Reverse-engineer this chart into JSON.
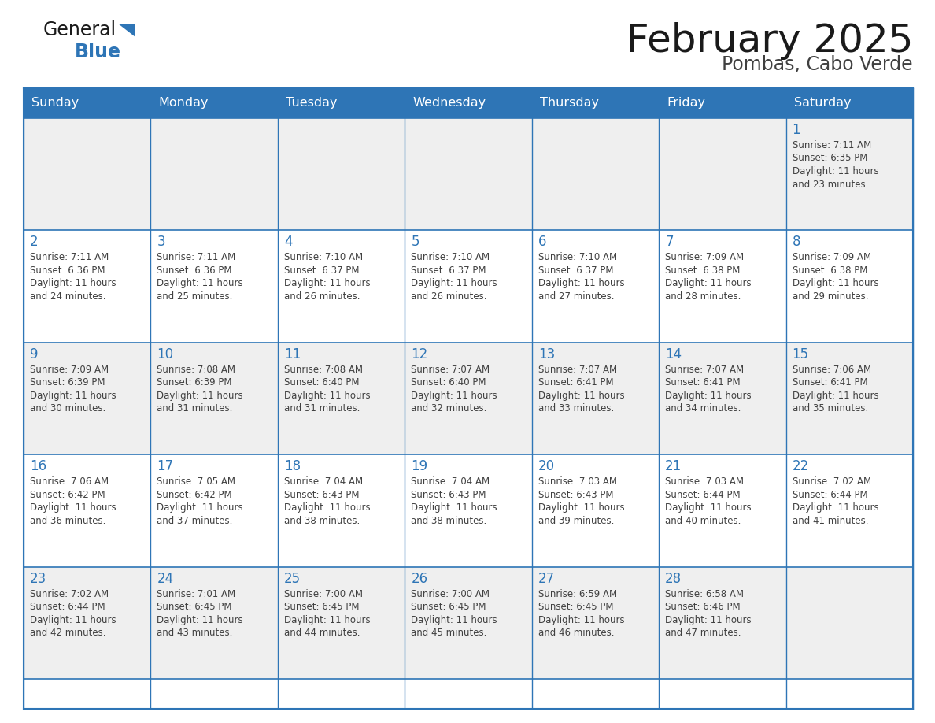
{
  "title": "February 2025",
  "subtitle": "Pombas, Cabo Verde",
  "days_of_week": [
    "Sunday",
    "Monday",
    "Tuesday",
    "Wednesday",
    "Thursday",
    "Friday",
    "Saturday"
  ],
  "header_bg": "#2E75B6",
  "header_text": "#FFFFFF",
  "cell_bg_white": "#FFFFFF",
  "cell_bg_gray": "#EFEFEF",
  "border_color": "#2E75B6",
  "day_num_color": "#2E75B6",
  "info_text_color": "#404040",
  "title_color": "#1a1a1a",
  "subtitle_color": "#404040",
  "logo_general_color": "#1a1a1a",
  "logo_blue_color": "#2E75B6",
  "weeks": [
    [
      null,
      null,
      null,
      null,
      null,
      null,
      1
    ],
    [
      2,
      3,
      4,
      5,
      6,
      7,
      8
    ],
    [
      9,
      10,
      11,
      12,
      13,
      14,
      15
    ],
    [
      16,
      17,
      18,
      19,
      20,
      21,
      22
    ],
    [
      23,
      24,
      25,
      26,
      27,
      28,
      null
    ]
  ],
  "cell_data": {
    "1": {
      "sunrise": "7:11 AM",
      "sunset": "6:35 PM",
      "daylight_h": "11 hours",
      "daylight_m": "23 minutes"
    },
    "2": {
      "sunrise": "7:11 AM",
      "sunset": "6:36 PM",
      "daylight_h": "11 hours",
      "daylight_m": "24 minutes"
    },
    "3": {
      "sunrise": "7:11 AM",
      "sunset": "6:36 PM",
      "daylight_h": "11 hours",
      "daylight_m": "25 minutes"
    },
    "4": {
      "sunrise": "7:10 AM",
      "sunset": "6:37 PM",
      "daylight_h": "11 hours",
      "daylight_m": "26 minutes"
    },
    "5": {
      "sunrise": "7:10 AM",
      "sunset": "6:37 PM",
      "daylight_h": "11 hours",
      "daylight_m": "26 minutes"
    },
    "6": {
      "sunrise": "7:10 AM",
      "sunset": "6:37 PM",
      "daylight_h": "11 hours",
      "daylight_m": "27 minutes"
    },
    "7": {
      "sunrise": "7:09 AM",
      "sunset": "6:38 PM",
      "daylight_h": "11 hours",
      "daylight_m": "28 minutes"
    },
    "8": {
      "sunrise": "7:09 AM",
      "sunset": "6:38 PM",
      "daylight_h": "11 hours",
      "daylight_m": "29 minutes"
    },
    "9": {
      "sunrise": "7:09 AM",
      "sunset": "6:39 PM",
      "daylight_h": "11 hours",
      "daylight_m": "30 minutes"
    },
    "10": {
      "sunrise": "7:08 AM",
      "sunset": "6:39 PM",
      "daylight_h": "11 hours",
      "daylight_m": "31 minutes"
    },
    "11": {
      "sunrise": "7:08 AM",
      "sunset": "6:40 PM",
      "daylight_h": "11 hours",
      "daylight_m": "31 minutes"
    },
    "12": {
      "sunrise": "7:07 AM",
      "sunset": "6:40 PM",
      "daylight_h": "11 hours",
      "daylight_m": "32 minutes"
    },
    "13": {
      "sunrise": "7:07 AM",
      "sunset": "6:41 PM",
      "daylight_h": "11 hours",
      "daylight_m": "33 minutes"
    },
    "14": {
      "sunrise": "7:07 AM",
      "sunset": "6:41 PM",
      "daylight_h": "11 hours",
      "daylight_m": "34 minutes"
    },
    "15": {
      "sunrise": "7:06 AM",
      "sunset": "6:41 PM",
      "daylight_h": "11 hours",
      "daylight_m": "35 minutes"
    },
    "16": {
      "sunrise": "7:06 AM",
      "sunset": "6:42 PM",
      "daylight_h": "11 hours",
      "daylight_m": "36 minutes"
    },
    "17": {
      "sunrise": "7:05 AM",
      "sunset": "6:42 PM",
      "daylight_h": "11 hours",
      "daylight_m": "37 minutes"
    },
    "18": {
      "sunrise": "7:04 AM",
      "sunset": "6:43 PM",
      "daylight_h": "11 hours",
      "daylight_m": "38 minutes"
    },
    "19": {
      "sunrise": "7:04 AM",
      "sunset": "6:43 PM",
      "daylight_h": "11 hours",
      "daylight_m": "38 minutes"
    },
    "20": {
      "sunrise": "7:03 AM",
      "sunset": "6:43 PM",
      "daylight_h": "11 hours",
      "daylight_m": "39 minutes"
    },
    "21": {
      "sunrise": "7:03 AM",
      "sunset": "6:44 PM",
      "daylight_h": "11 hours",
      "daylight_m": "40 minutes"
    },
    "22": {
      "sunrise": "7:02 AM",
      "sunset": "6:44 PM",
      "daylight_h": "11 hours",
      "daylight_m": "41 minutes"
    },
    "23": {
      "sunrise": "7:02 AM",
      "sunset": "6:44 PM",
      "daylight_h": "11 hours",
      "daylight_m": "42 minutes"
    },
    "24": {
      "sunrise": "7:01 AM",
      "sunset": "6:45 PM",
      "daylight_h": "11 hours",
      "daylight_m": "43 minutes"
    },
    "25": {
      "sunrise": "7:00 AM",
      "sunset": "6:45 PM",
      "daylight_h": "11 hours",
      "daylight_m": "44 minutes"
    },
    "26": {
      "sunrise": "7:00 AM",
      "sunset": "6:45 PM",
      "daylight_h": "11 hours",
      "daylight_m": "45 minutes"
    },
    "27": {
      "sunrise": "6:59 AM",
      "sunset": "6:45 PM",
      "daylight_h": "11 hours",
      "daylight_m": "46 minutes"
    },
    "28": {
      "sunrise": "6:58 AM",
      "sunset": "6:46 PM",
      "daylight_h": "11 hours",
      "daylight_m": "47 minutes"
    }
  }
}
